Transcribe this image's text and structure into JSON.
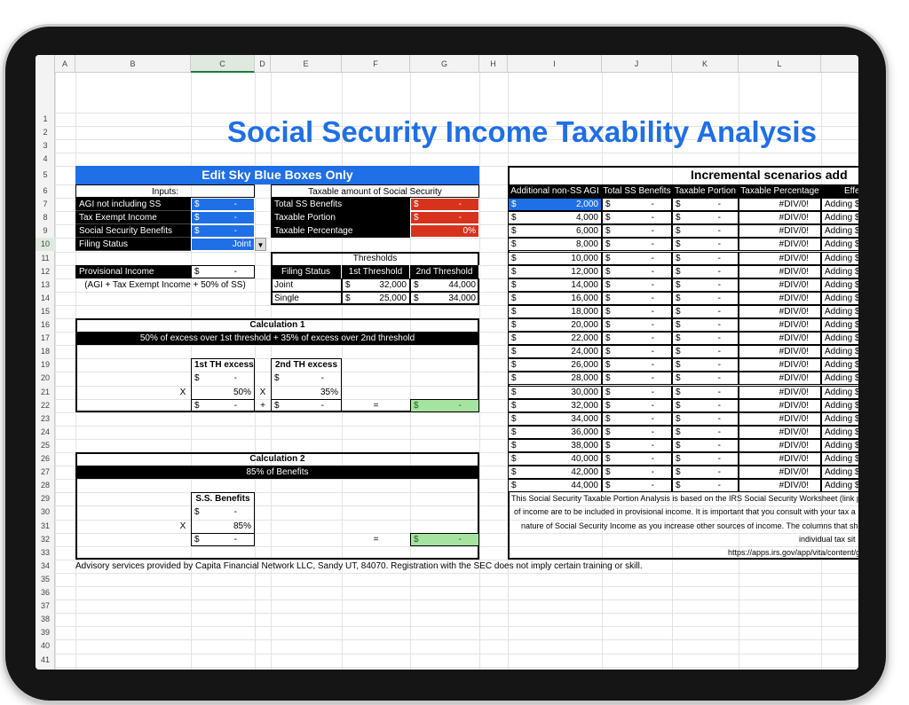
{
  "column_headers": [
    "A",
    "B",
    "C",
    "D",
    "E",
    "F",
    "G",
    "H",
    "I",
    "J",
    "K",
    "L"
  ],
  "row_numbers": [
    1,
    2,
    3,
    4,
    5,
    6,
    7,
    8,
    9,
    10,
    11,
    12,
    13,
    14,
    15,
    16,
    17,
    18,
    19,
    20,
    21,
    22,
    23,
    24,
    25,
    26,
    27,
    28,
    29,
    30,
    31,
    32,
    33,
    34,
    35,
    36,
    37,
    38,
    39,
    40,
    41
  ],
  "title": "Social Security Income Taxability Analysis",
  "edit_banner": "Edit Sky Blue Boxes Only",
  "inputs": {
    "header": "Inputs:",
    "rows": [
      [
        "AGI not including SS",
        "$",
        "-"
      ],
      [
        "Tax Exempt Income",
        "$",
        "-"
      ],
      [
        "Social Security Benefits",
        "$",
        "-"
      ],
      [
        "Filing Status",
        "Joint"
      ]
    ]
  },
  "taxable": {
    "header": "Taxable amount of Social Security",
    "rows": [
      [
        "Total SS Benefits",
        "$",
        "-"
      ],
      [
        "Taxable Portion",
        "$",
        "-"
      ],
      [
        "Taxable Percentage",
        "0%"
      ]
    ]
  },
  "provisional": {
    "label": "Provisional Income",
    "currency": "$",
    "value": "-",
    "note": "(AGI + Tax Exempt Income + 50% of SS)"
  },
  "thresholds": {
    "header": "Thresholds",
    "columns": [
      "Filing Status",
      "1st Threshold",
      "2nd Threshold"
    ],
    "rows": [
      [
        "Joint",
        "$",
        "32,000",
        "$",
        "44,000"
      ],
      [
        "Single",
        "$",
        "25,000",
        "$",
        "34,000"
      ]
    ]
  },
  "calc1": {
    "title": "Calculation 1",
    "subtitle": "50% of excess over 1st threshold + 35% of excess over 2nd threshold",
    "boxes": [
      {
        "header": "1st TH excess",
        "amount": [
          "$",
          "-"
        ],
        "operator": "X",
        "rate": "50%",
        "result": [
          "$",
          "-"
        ]
      },
      {
        "header": "2nd TH excess",
        "amount": [
          "$",
          "-"
        ],
        "operator": "X",
        "rate": "35%",
        "result": [
          "$",
          "-"
        ]
      }
    ],
    "plus": "+",
    "equals": "=",
    "total": [
      "$",
      "-"
    ]
  },
  "calc2": {
    "title": "Calculation 2",
    "subtitle": "85% of Benefits",
    "boxes": [
      {
        "header": "S.S. Benefits",
        "amount": [
          "$",
          "-"
        ],
        "operator": "X",
        "rate": "85%",
        "result": [
          "$",
          "-"
        ]
      }
    ],
    "equals": "=",
    "total": [
      "$",
      "-"
    ]
  },
  "footer": "Advisory services provided by Capita Financial Network LLC, Sandy UT, 84070. Registration with the SEC does not imply certain training or skill.",
  "scenarios": {
    "title": "Incremental scenarios add",
    "columns": [
      "Additional non-SS AGI",
      "Total SS Benefits",
      "Taxable Portion",
      "Taxable Percentage",
      "Effe"
    ],
    "rows": [
      [
        "$",
        "2,000",
        "$",
        "-",
        "$",
        "-",
        "#DIV/0!",
        "Adding $"
      ],
      [
        "$",
        "4,000",
        "$",
        "-",
        "$",
        "-",
        "#DIV/0!",
        "Adding $"
      ],
      [
        "$",
        "6,000",
        "$",
        "-",
        "$",
        "-",
        "#DIV/0!",
        "Adding $"
      ],
      [
        "$",
        "8,000",
        "$",
        "-",
        "$",
        "-",
        "#DIV/0!",
        "Adding $"
      ],
      [
        "$",
        "10,000",
        "$",
        "-",
        "$",
        "-",
        "#DIV/0!",
        "Adding $"
      ],
      [
        "$",
        "12,000",
        "$",
        "-",
        "$",
        "-",
        "#DIV/0!",
        "Adding $"
      ],
      [
        "$",
        "14,000",
        "$",
        "-",
        "$",
        "-",
        "#DIV/0!",
        "Adding $"
      ],
      [
        "$",
        "16,000",
        "$",
        "-",
        "$",
        "-",
        "#DIV/0!",
        "Adding $"
      ],
      [
        "$",
        "18,000",
        "$",
        "-",
        "$",
        "-",
        "#DIV/0!",
        "Adding $"
      ],
      [
        "$",
        "20,000",
        "$",
        "-",
        "$",
        "-",
        "#DIV/0!",
        "Adding $"
      ],
      [
        "$",
        "22,000",
        "$",
        "-",
        "$",
        "-",
        "#DIV/0!",
        "Adding $"
      ],
      [
        "$",
        "24,000",
        "$",
        "-",
        "$",
        "-",
        "#DIV/0!",
        "Adding $"
      ],
      [
        "$",
        "26,000",
        "$",
        "-",
        "$",
        "-",
        "#DIV/0!",
        "Adding $"
      ],
      [
        "$",
        "28,000",
        "$",
        "-",
        "$",
        "-",
        "#DIV/0!",
        "Adding $"
      ],
      [
        "$",
        "30,000",
        "$",
        "-",
        "$",
        "-",
        "#DIV/0!",
        "Adding $"
      ],
      [
        "$",
        "32,000",
        "$",
        "-",
        "$",
        "-",
        "#DIV/0!",
        "Adding $"
      ],
      [
        "$",
        "34,000",
        "$",
        "-",
        "$",
        "-",
        "#DIV/0!",
        "Adding $"
      ],
      [
        "$",
        "36,000",
        "$",
        "-",
        "$",
        "-",
        "#DIV/0!",
        "Adding $"
      ],
      [
        "$",
        "38,000",
        "$",
        "-",
        "$",
        "-",
        "#DIV/0!",
        "Adding $"
      ],
      [
        "$",
        "40,000",
        "$",
        "-",
        "$",
        "-",
        "#DIV/0!",
        "Adding $"
      ],
      [
        "$",
        "42,000",
        "$",
        "-",
        "$",
        "-",
        "#DIV/0!",
        "Adding $"
      ],
      [
        "$",
        "44,000",
        "$",
        "-",
        "$",
        "-",
        "#DIV/0!",
        "Adding $"
      ]
    ],
    "notes": [
      "This Social Security Taxable Portion Analysis is based on the IRS Social Security Worksheet (link po",
      "of income are to be included in provisional income. It is important that you consult with your tax a",
      "nature of Social Security Income as you increase other sources of income. The columns that show \"",
      "individual tax sit",
      "https://apps.irs.gov/app/vita/content/g"
    ]
  }
}
